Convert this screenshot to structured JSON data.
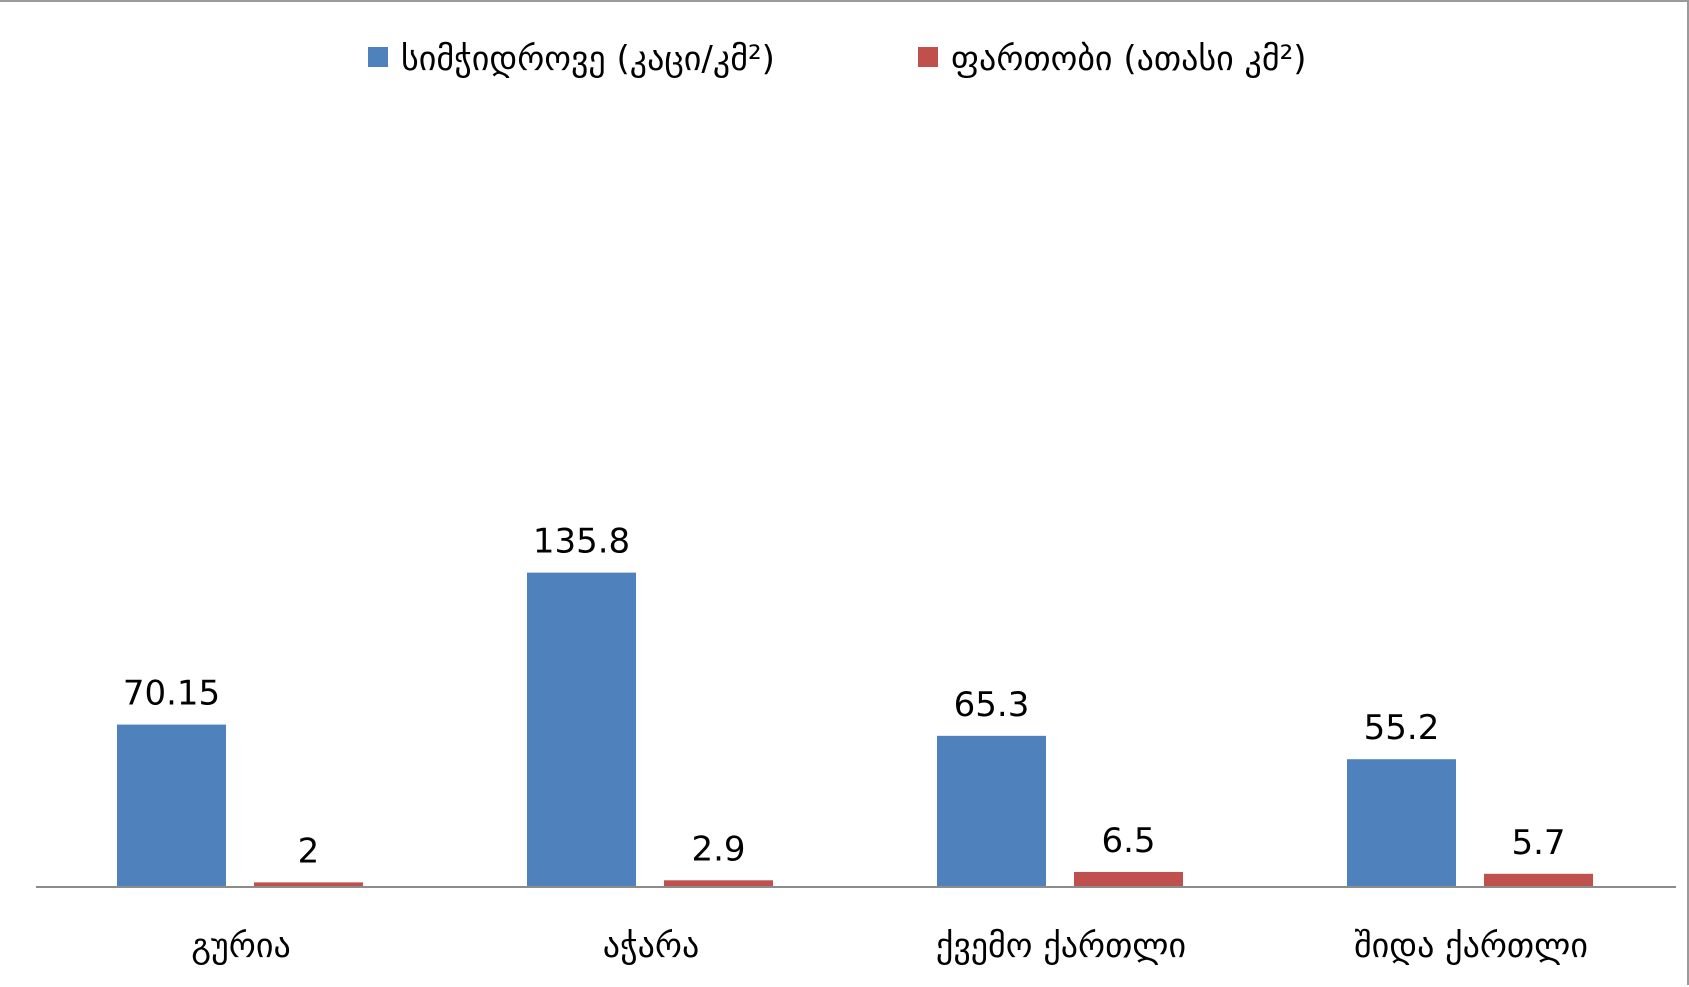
{
  "chart_data": {
    "type": "bar",
    "categories": [
      "გურია",
      "აჭარა",
      "ქვემო ქართლი",
      "შიდა ქართლი"
    ],
    "series": [
      {
        "name": "სიმჭიდროვე (კაცი/კმ²)",
        "color": "#4f81bd",
        "values": [
          70.15,
          135.8,
          65.3,
          55.2
        ],
        "labels": [
          "70.15",
          "135.8",
          "65.3",
          "55.2"
        ]
      },
      {
        "name": "ფართობი (ათასი კმ²)",
        "color": "#c0504d",
        "values": [
          2,
          2.9,
          6.5,
          5.7
        ],
        "labels": [
          "2",
          "2.9",
          "6.5",
          "5.7"
        ]
      }
    ],
    "ylim": [
      0,
      150
    ],
    "grid": false,
    "legend": "top"
  }
}
